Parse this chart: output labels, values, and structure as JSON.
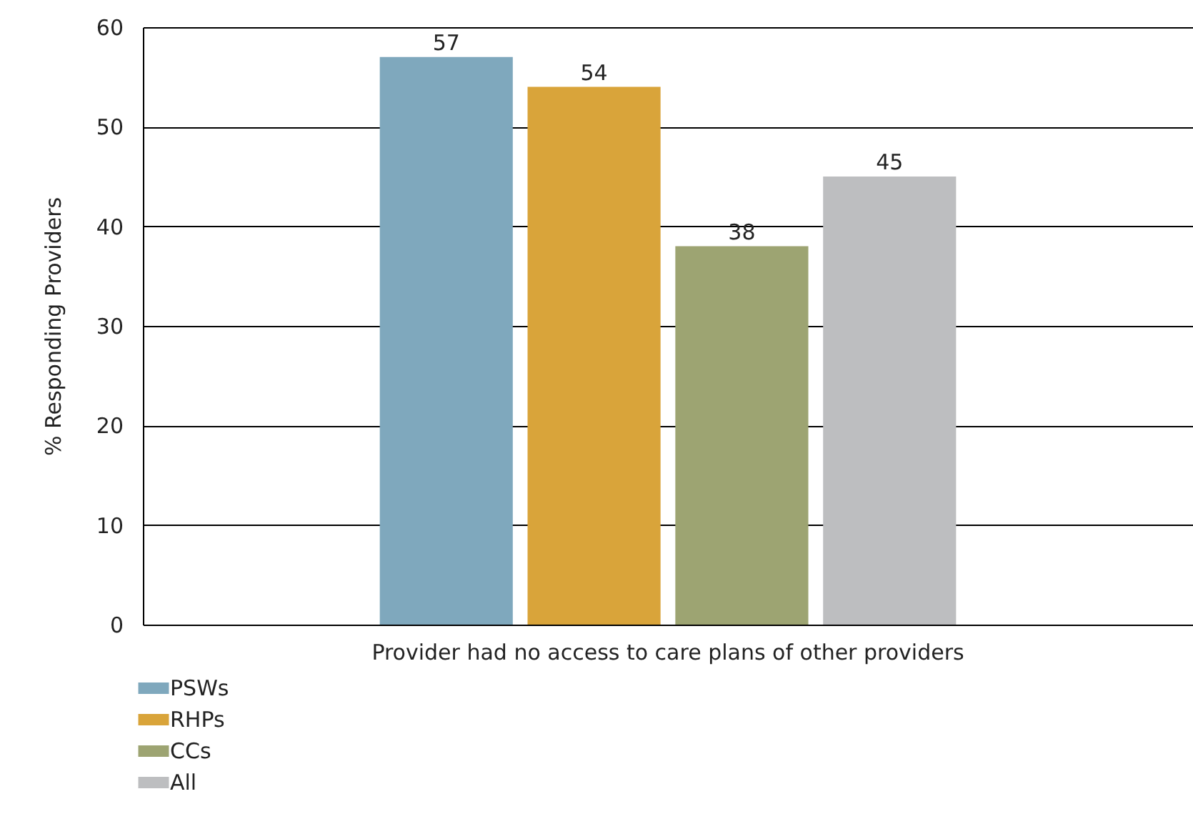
{
  "chart_data": {
    "type": "bar",
    "ylabel": "% Responding Providers",
    "categories": [
      "Provider had no access to care plans of other providers"
    ],
    "series": [
      {
        "name": "PSWs",
        "color": "#7fa8bd",
        "values": [
          57
        ]
      },
      {
        "name": "RHPs",
        "color": "#d9a43a",
        "values": [
          54
        ]
      },
      {
        "name": "CCs",
        "color": "#9da472",
        "values": [
          38
        ]
      },
      {
        "name": "All",
        "color": "#bdbec0",
        "values": [
          45
        ]
      }
    ],
    "ylim": [
      0,
      60
    ],
    "yticks": [
      0,
      10,
      20,
      30,
      40,
      50,
      60
    ],
    "grid": "y",
    "legend": "bottom left",
    "data_labels": true
  }
}
